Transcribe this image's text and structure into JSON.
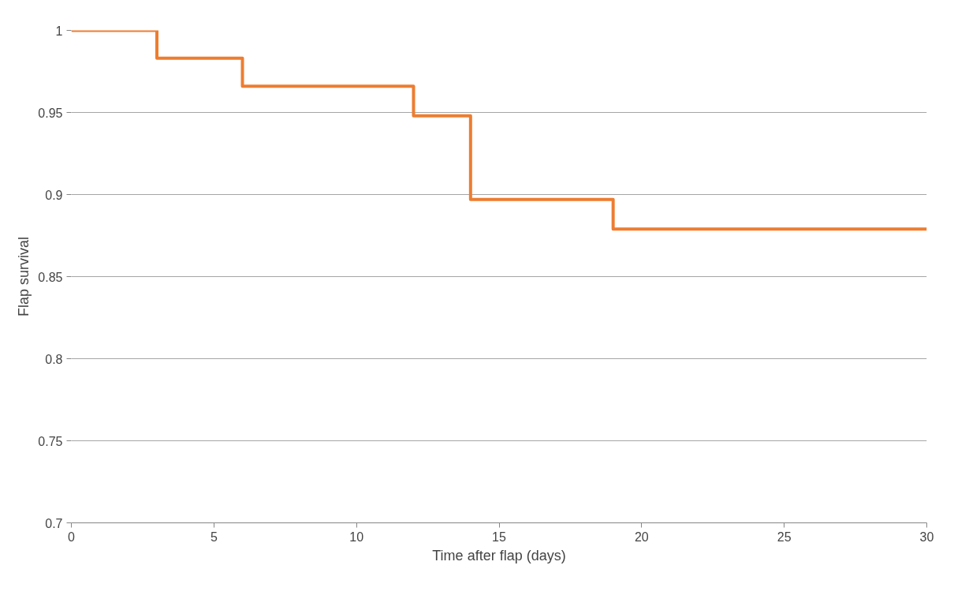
{
  "chart_data": {
    "type": "step",
    "xlabel": "Time after flap (days)",
    "ylabel": "Flap survival",
    "x": [
      0,
      3,
      6,
      12,
      14,
      19,
      30
    ],
    "series": [
      {
        "color": "#ed7d31",
        "values": [
          1,
          0.983,
          0.966,
          0.948,
          0.897,
          0.879,
          0.879
        ]
      }
    ],
    "xlim": [
      0,
      30
    ],
    "xticks": [
      0,
      5,
      10,
      15,
      20,
      25,
      30
    ],
    "ylim": [
      0.7,
      1
    ],
    "yticks": [
      0.7,
      0.75,
      0.8,
      0.85,
      0.9,
      0.95,
      1
    ],
    "grid": "y",
    "line_style": "solid",
    "marker": "none"
  }
}
